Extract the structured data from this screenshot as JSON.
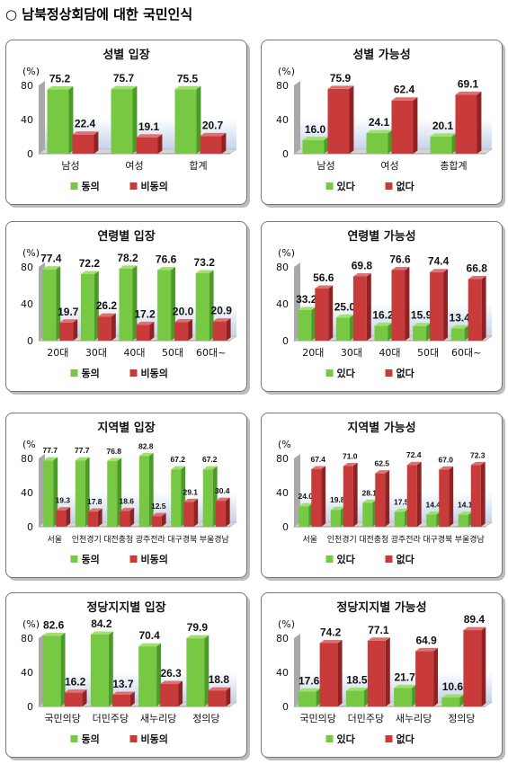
{
  "page_title": "○ 남북정상회담에 대한 국민인식",
  "colors": {
    "green": "#77c944",
    "green_dark": "#4c9a27",
    "red": "#c93a3a",
    "red_dark": "#8f2222",
    "wall": "#c3d4ea"
  },
  "chart_data": [
    {
      "type": "bar",
      "title": "성별 입장",
      "unit_label": "(%)",
      "yticks": [
        "80",
        "40",
        "0"
      ],
      "ylim": [
        0,
        80
      ],
      "categories": [
        "남성",
        "여성",
        "합계"
      ],
      "series": [
        {
          "name": "동의",
          "values": [
            75.2,
            75.7,
            75.5
          ]
        },
        {
          "name": "비동의",
          "values": [
            22.4,
            19.1,
            20.7
          ]
        }
      ],
      "value_labels": [
        [
          "75.2",
          "75.7",
          "75.5"
        ],
        [
          "22.4",
          "19.1",
          "20.7"
        ]
      ]
    },
    {
      "type": "bar",
      "title": "성별 가능성",
      "unit_label": "(%)",
      "yticks": [
        "80",
        "40",
        "0"
      ],
      "ylim": [
        0,
        80
      ],
      "categories": [
        "남성",
        "여성",
        "총합계"
      ],
      "series": [
        {
          "name": "있다",
          "values": [
            16.0,
            24.1,
            20.1
          ]
        },
        {
          "name": "없다",
          "values": [
            75.9,
            62.4,
            69.1
          ]
        }
      ],
      "value_labels": [
        [
          "16.0",
          "24.1",
          "20.1"
        ],
        [
          "75.9",
          "62.4",
          "69.1"
        ]
      ]
    },
    {
      "type": "bar",
      "title": "연령별 입장",
      "unit_label": "(%)",
      "yticks": [
        "80",
        "40",
        "0"
      ],
      "ylim": [
        0,
        80
      ],
      "categories": [
        "20대",
        "30대",
        "40대",
        "50대",
        "60대~"
      ],
      "series": [
        {
          "name": "동의",
          "values": [
            77.4,
            72.2,
            78.2,
            76.6,
            73.2
          ]
        },
        {
          "name": "비동의",
          "values": [
            19.7,
            26.2,
            17.2,
            20.0,
            20.9
          ]
        }
      ],
      "value_labels": [
        [
          "77.4",
          "72.2",
          "78.2",
          "76.6",
          "73.2"
        ],
        [
          "19.7",
          "26.2",
          "17.2",
          "20.0",
          "20.9"
        ]
      ]
    },
    {
      "type": "bar",
      "title": "연령별 가능성",
      "unit_label": "(%)",
      "yticks": [
        "80",
        "40",
        "0"
      ],
      "ylim": [
        0,
        80
      ],
      "categories": [
        "20대",
        "30대",
        "40대",
        "50대",
        "60대~"
      ],
      "series": [
        {
          "name": "있다",
          "values": [
            33.2,
            25.0,
            16.2,
            15.9,
            13.4
          ]
        },
        {
          "name": "없다",
          "values": [
            56.6,
            69.8,
            76.6,
            74.4,
            66.8
          ]
        }
      ],
      "value_labels": [
        [
          "33.2",
          "25.0",
          "16.2",
          "15.9",
          "13.4"
        ],
        [
          "56.6",
          "69.8",
          "76.6",
          "74.4",
          "66.8"
        ]
      ]
    },
    {
      "type": "bar",
      "title": "지역별 입장",
      "unit_label": "(%",
      "yticks": [
        "80",
        "40",
        "0"
      ],
      "ylim": [
        0,
        80
      ],
      "categories": [
        "서울",
        "인천경기",
        "대전충청",
        "광주전라",
        "대구경북",
        "부울경남"
      ],
      "series": [
        {
          "name": "동의",
          "values": [
            77.7,
            77.7,
            76.8,
            82.8,
            67.2,
            67.2
          ]
        },
        {
          "name": "비동의",
          "values": [
            19.3,
            17.8,
            18.6,
            12.5,
            29.1,
            30.4
          ]
        }
      ],
      "value_labels": [
        [
          "77.7",
          "77.7",
          "76.8",
          "82.8",
          "67.2",
          "67.2"
        ],
        [
          "19.3",
          "17.8",
          "18.6",
          "12.5",
          "29.1",
          "30.4"
        ]
      ]
    },
    {
      "type": "bar",
      "title": "지역별 가능성",
      "unit_label": "(%",
      "yticks": [
        "80",
        "40",
        "0"
      ],
      "ylim": [
        0,
        80
      ],
      "categories": [
        "서울",
        "인천경기",
        "대전충청",
        "광주전라",
        "대구경북",
        "부울경남"
      ],
      "series": [
        {
          "name": "있다",
          "values": [
            24.0,
            19.8,
            28.1,
            17.5,
            14.4,
            14.1
          ]
        },
        {
          "name": "없다",
          "values": [
            67.4,
            71.0,
            62.5,
            72.4,
            67.0,
            72.3
          ]
        }
      ],
      "value_labels": [
        [
          "24.0",
          "19.8",
          "28.1",
          "17.5",
          "14.4",
          "14.1"
        ],
        [
          "67.4",
          "71.0",
          "62.5",
          "72.4",
          "67.0",
          "72.3"
        ]
      ]
    },
    {
      "type": "bar",
      "title": "정당지지별 입장",
      "unit_label": "(%)",
      "yticks": [
        "80",
        "40",
        "0"
      ],
      "ylim": [
        0,
        80
      ],
      "categories": [
        "국민의당",
        "더민주당",
        "새누리당",
        "정의당"
      ],
      "series": [
        {
          "name": "동의",
          "values": [
            82.6,
            84.2,
            70.4,
            79.9
          ]
        },
        {
          "name": "비동의",
          "values": [
            16.2,
            13.7,
            26.3,
            18.8
          ]
        }
      ],
      "value_labels": [
        [
          "82.6",
          "84.2",
          "70.4",
          "79.9"
        ],
        [
          "16.2",
          "13.7",
          "26.3",
          "18.8"
        ]
      ]
    },
    {
      "type": "bar",
      "title": "정당지지별 가능성",
      "unit_label": "(%)",
      "yticks": [
        "80",
        "40",
        "0"
      ],
      "ylim": [
        0,
        80
      ],
      "categories": [
        "국민의당",
        "더민주당",
        "새누리당",
        "정의당"
      ],
      "series": [
        {
          "name": "있다",
          "values": [
            17.6,
            18.5,
            21.7,
            10.6
          ]
        },
        {
          "name": "없다",
          "values": [
            74.2,
            77.1,
            64.9,
            89.4
          ]
        }
      ],
      "value_labels": [
        [
          "17.6",
          "18.5",
          "21.7",
          "10.6"
        ],
        [
          "74.2",
          "77.1",
          "64.9",
          "89.4"
        ]
      ]
    }
  ]
}
